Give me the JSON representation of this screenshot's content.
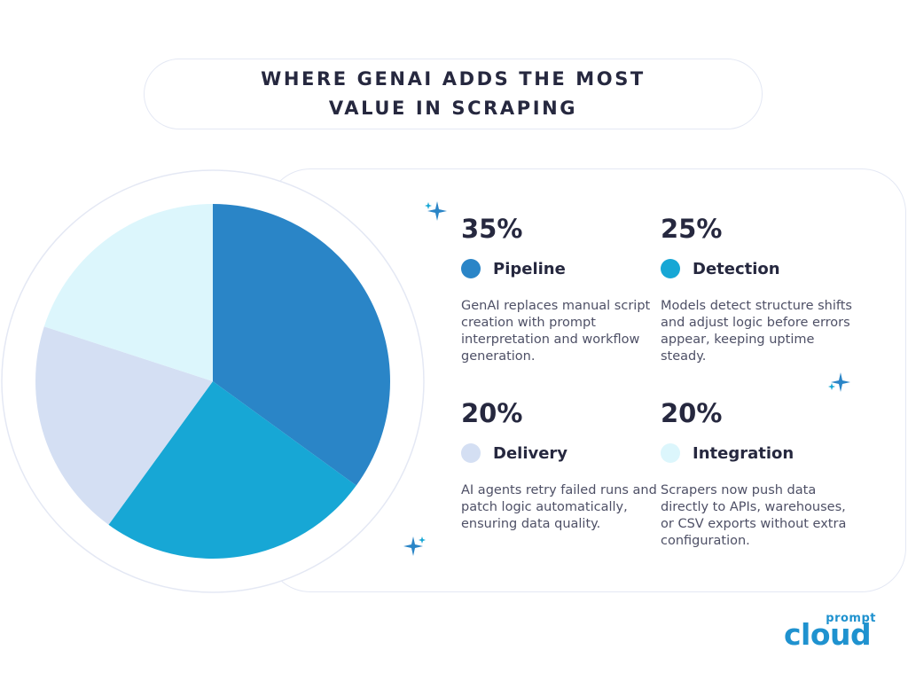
{
  "header": {
    "title_line1": "WHERE GENAI ADDS THE MOST",
    "title_line2": "VALUE IN SCRAPING"
  },
  "chart_data": {
    "type": "pie",
    "title": "WHERE GENAI ADDS THE MOST VALUE IN SCRAPING",
    "categories": [
      "Pipeline",
      "Detection",
      "Delivery",
      "Integration"
    ],
    "values": [
      35,
      25,
      20,
      20
    ],
    "colors": [
      "#2a85c7",
      "#17a7d5",
      "#d4dff3",
      "#dcf6fc"
    ]
  },
  "stats": [
    {
      "percent": "35%",
      "label": "Pipeline",
      "color": "#2a85c7",
      "description": "GenAI replaces manual script creation with prompt interpretation and workflow generation."
    },
    {
      "percent": "25%",
      "label": "Detection",
      "color": "#17a7d5",
      "description": "Models detect structure shifts and adjust logic before errors appear, keeping uptime steady."
    },
    {
      "percent": "20%",
      "label": "Delivery",
      "color": "#d4dff3",
      "description": "AI agents retry failed runs and patch logic automatically, ensuring data quality."
    },
    {
      "percent": "20%",
      "label": "Integration",
      "color": "#dcf6fc",
      "description": "Scrapers now push data directly to APIs, warehouses, or CSV exports without extra configuration."
    }
  ],
  "logo": {
    "small": "prompt",
    "big": "cloud"
  },
  "icons": {
    "sparkle": "sparkle-icon"
  }
}
